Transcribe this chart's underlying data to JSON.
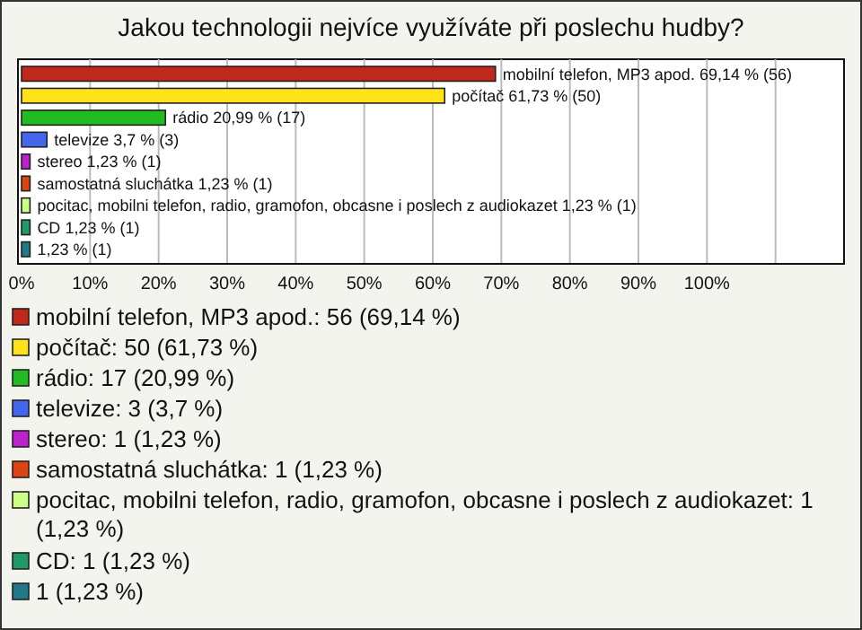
{
  "chart_data": {
    "type": "bar",
    "orientation": "horizontal",
    "title": "Jakou technologii nejvíce využíváte při poslechu hudby?",
    "categories": [
      "mobilní telefon, MP3 apod.",
      "počítač",
      "rádio",
      "televize",
      "stereo",
      "samostatná sluchátka",
      "pocitac, mobilni telefon, radio, gramofon, obcasne i poslech z audiokazet",
      "CD",
      null
    ],
    "values": [
      69.14,
      61.73,
      20.99,
      3.7,
      1.23,
      1.23,
      1.23,
      1.23,
      1.23
    ],
    "colors": [
      "#c0281c",
      "#ffe21a",
      "#22bb22",
      "#4466ee",
      "#bb22cc",
      "#dd4411",
      "#ccff88",
      "#229966",
      "#227788"
    ],
    "value_labels": [
      "mobilní telefon, MP3 apod. 69,14 % (56)",
      "počítač 61,73 % (50)",
      "rádio 20,99 % (17)",
      "televize 3,7 % (3)",
      "stereo 1,23 % (1)",
      "samostatná sluchátka 1,23 % (1)",
      "pocitac, mobilni telefon, radio, gramofon, obcasne i poslech z audiokazet 1,23 % (1)",
      "CD 1,23 % (1)",
      "1,23 % (1)"
    ],
    "annotations": [
      "mobilní telefon, MP3 apod.: 56 (69,14 %)",
      "počítač: 50 (61,73 %)",
      "rádio: 17 (20,99 %)",
      "televize: 3 (3,7 %)",
      "stereo: 1 (1,23 %)",
      "samostatná sluchátka: 1 (1,23 %)",
      "pocitac, mobilni telefon, radio, gramofon, obcasne i poslech z audiokazet: 1 (1,23 %)",
      "CD: 1 (1,23 %)",
      "1 (1,23 %)"
    ],
    "xlim": [
      0,
      120
    ],
    "xticks": [
      {
        "value": 0,
        "label": "0%"
      },
      {
        "value": 10,
        "label": "10%"
      },
      {
        "value": 20,
        "label": "20%"
      },
      {
        "value": 30,
        "label": "30%"
      },
      {
        "value": 40,
        "label": "40%"
      },
      {
        "value": 50,
        "label": "50%"
      },
      {
        "value": 60,
        "label": "60%"
      },
      {
        "value": 70,
        "label": "70%"
      },
      {
        "value": 80,
        "label": "80%"
      },
      {
        "value": 90,
        "label": "90%"
      },
      {
        "value": 100,
        "label": "100%"
      }
    ],
    "grid": "x"
  }
}
